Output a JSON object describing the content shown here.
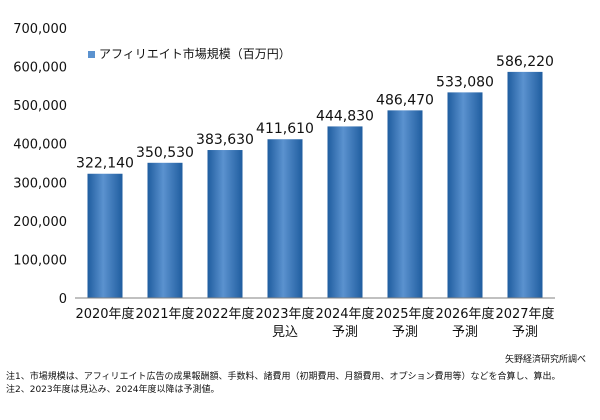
{
  "chart_data": {
    "type": "bar",
    "legend": "アフィリエイト市場規模（百万円）",
    "legend_position": "top-left",
    "categories": [
      [
        "2020年度"
      ],
      [
        "2021年度"
      ],
      [
        "2022年度"
      ],
      [
        "2023年度",
        "見込"
      ],
      [
        "2024年度",
        "予測"
      ],
      [
        "2025年度",
        "予測"
      ],
      [
        "2026年度",
        "予測"
      ],
      [
        "2027年度",
        "予測"
      ]
    ],
    "values": [
      322140,
      350530,
      383630,
      411610,
      444830,
      486470,
      533080,
      586220
    ],
    "value_labels": [
      "322,140",
      "350,530",
      "383,630",
      "411,610",
      "444,830",
      "486,470",
      "533,080",
      "586,220"
    ],
    "ylim": [
      0,
      700000
    ],
    "yticks": [
      0,
      100000,
      200000,
      300000,
      400000,
      500000,
      600000,
      700000
    ],
    "ytick_labels": [
      "0",
      "100,000",
      "200,000",
      "300,000",
      "400,000",
      "500,000",
      "600,000",
      "700,000"
    ],
    "grid": false,
    "colors": {
      "bar_light": "#5b92cf",
      "bar_dark": "#1f5d9f",
      "axis": "#808080"
    }
  },
  "source": "矢野経済研究所調べ",
  "notes": [
    "注1、市場規模は、アフィリエイト広告の成果報酬額、手数料、諸費用（初期費用、月額費用、オプション費用等）などを合算し、算出。",
    "注2、2023年度は見込み、2024年度以降は予測値。"
  ]
}
